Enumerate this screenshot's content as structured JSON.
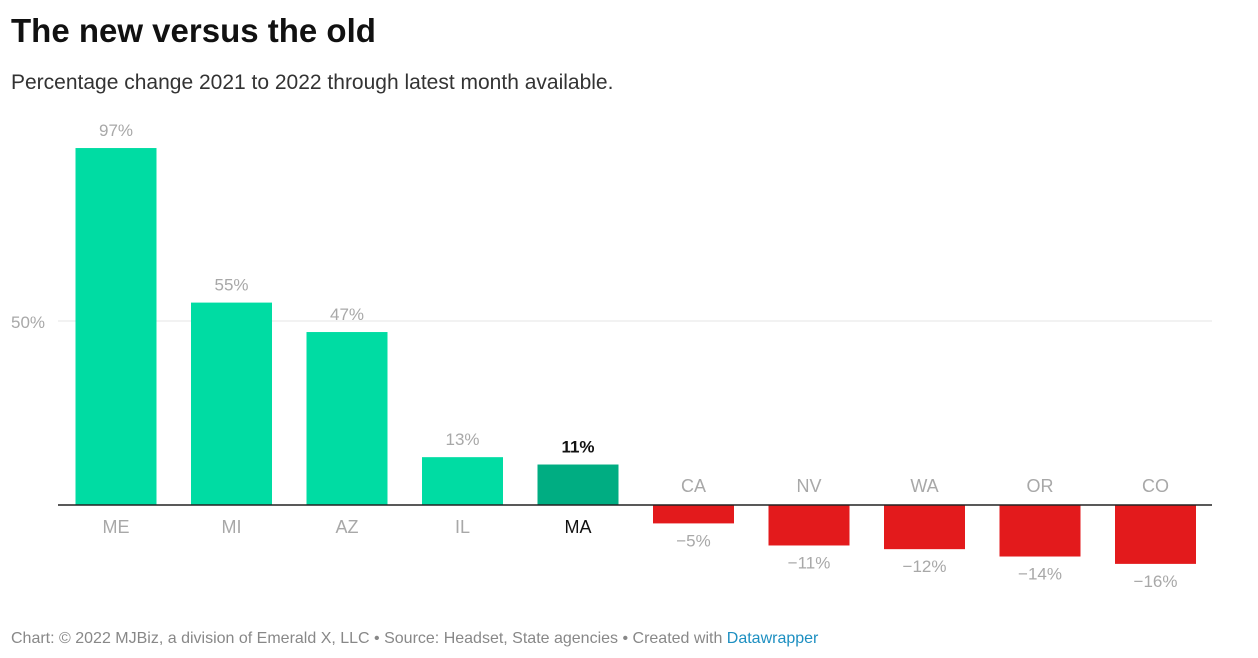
{
  "header": {
    "title": "The new versus the old",
    "subtitle": "Percentage change 2021 to 2022 through latest month available."
  },
  "footer": {
    "text": "Chart: © 2022 MJBiz, a division of Emerald X, LLC • Source: Headset, State agencies • Created with ",
    "link_label": "Datawrapper"
  },
  "colors": {
    "positive": "#00dca3",
    "highlight": "#00ad82",
    "negative": "#e31a1c",
    "label": "#a8a8a8",
    "highlight_label": "#111111",
    "grid": "#e6e6e6",
    "baseline": "#222222",
    "link": "#1d8fc1"
  },
  "chart_data": {
    "type": "bar",
    "categories": [
      "ME",
      "MI",
      "AZ",
      "IL",
      "MA",
      "CA",
      "NV",
      "WA",
      "OR",
      "CO"
    ],
    "values": [
      97,
      55,
      47,
      13,
      11,
      -5,
      -11,
      -12,
      -14,
      -16
    ],
    "value_labels": [
      "97%",
      "55%",
      "47%",
      "13%",
      "11%",
      "−5%",
      "−11%",
      "−12%",
      "−14%",
      "−16%"
    ],
    "highlight": "MA",
    "y_ticks": [
      {
        "value": 50,
        "label": "50%"
      }
    ],
    "ylim": [
      -24,
      100
    ],
    "grid": true,
    "legend": "none"
  }
}
